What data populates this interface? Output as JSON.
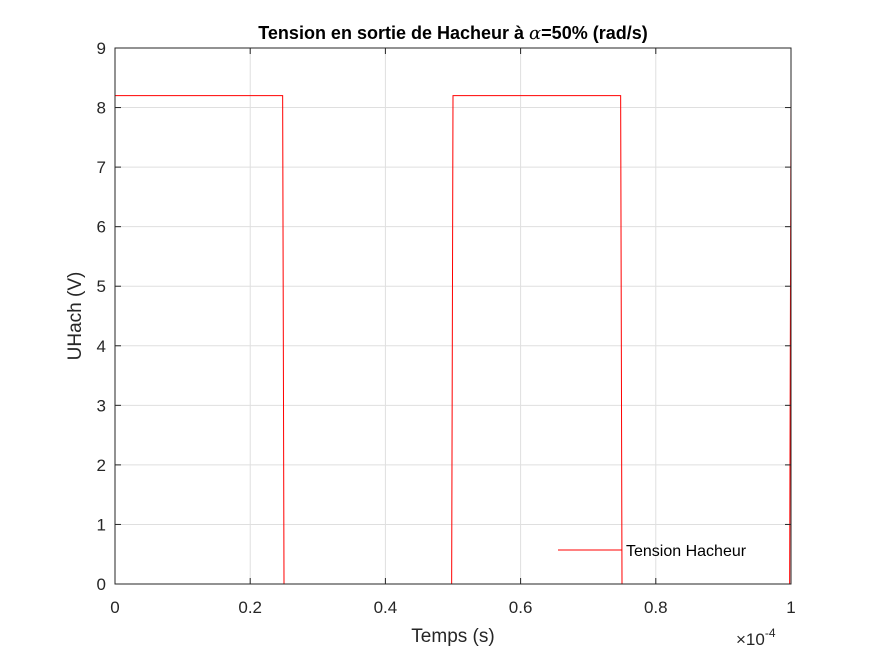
{
  "chart_data": {
    "type": "line",
    "title_parts": [
      "Tension en sortie de Hacheur à ",
      "α",
      "=50% (rad/s)"
    ],
    "xlabel": "Temps (s)",
    "ylabel": "UHach (V)",
    "x_multiplier": {
      "base": "×10",
      "exponent": "-4"
    },
    "xlim": [
      0,
      0.0001
    ],
    "ylim": [
      0,
      9
    ],
    "xticks": [
      0,
      2e-05,
      4e-05,
      6e-05,
      8e-05,
      0.0001
    ],
    "xtick_labels": [
      "0",
      "0.2",
      "0.4",
      "0.6",
      "0.8",
      "1"
    ],
    "yticks": [
      0,
      1,
      2,
      3,
      4,
      5,
      6,
      7,
      8,
      9
    ],
    "ytick_labels": [
      "0",
      "1",
      "2",
      "3",
      "4",
      "5",
      "6",
      "7",
      "8",
      "9"
    ],
    "grid": true,
    "legend_position": "bottom-right",
    "series": [
      {
        "name": "Tension Hacheur",
        "color": "#ff0000",
        "x": [
          0,
          2.48e-05,
          2.5e-05,
          4.98e-05,
          5e-05,
          7.48e-05,
          7.5e-05,
          9.98e-05,
          0.0001
        ],
        "y": [
          8.2,
          8.2,
          0,
          0,
          8.2,
          8.2,
          0,
          0,
          8.2
        ]
      }
    ]
  }
}
